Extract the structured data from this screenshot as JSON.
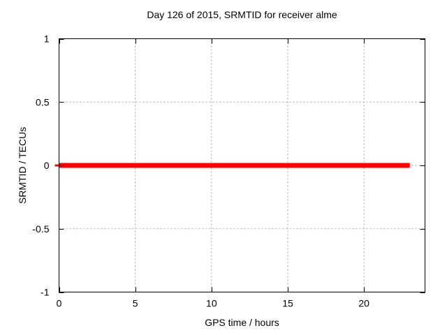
{
  "chart_data": {
    "type": "line",
    "title": "Day 126 of 2015, SRMTID for receiver alme",
    "xlabel": "GPS time / hours",
    "ylabel": "SRMTID / TECUs",
    "xlim": [
      0,
      24
    ],
    "ylim": [
      -1,
      1
    ],
    "xticks": [
      {
        "value": 0,
        "label": "0"
      },
      {
        "value": 5,
        "label": "5"
      },
      {
        "value": 10,
        "label": "10"
      },
      {
        "value": 15,
        "label": "15"
      },
      {
        "value": 20,
        "label": "20"
      }
    ],
    "yticks": [
      {
        "value": -1,
        "label": "-1"
      },
      {
        "value": -0.5,
        "label": "-0.5"
      },
      {
        "value": 0,
        "label": "0"
      },
      {
        "value": 0.5,
        "label": "0.5"
      },
      {
        "value": 1,
        "label": "1"
      }
    ],
    "grid": "dashed",
    "legend": "none",
    "series": [
      {
        "name": "SRMTID",
        "color": "#ff0000",
        "x": [
          0,
          23
        ],
        "y": [
          0,
          0
        ]
      }
    ]
  },
  "colors": {
    "background": "#ffffff",
    "frame": "#000000",
    "grid": "#a0a0a0",
    "text": "#000000",
    "series_red": "#ff0000"
  }
}
